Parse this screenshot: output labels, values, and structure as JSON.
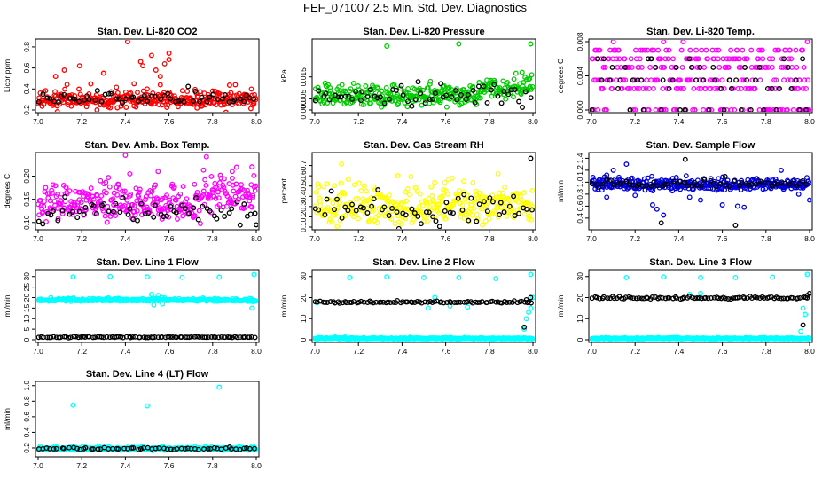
{
  "title": "FEF_071007  2.5 Min. Std. Dev. Diagnostics",
  "colors": {
    "red": "#ff0000",
    "green": "#00cc00",
    "magenta": "#ff00ff",
    "yellow": "#ffff00",
    "blue": "#0000dd",
    "cyan": "#00ffff",
    "black": "#000000"
  },
  "chart_data": [
    {
      "type": "scatter",
      "title": "Stan. Dev. Li-820 CO2",
      "ylabel": "Licor ppm",
      "xlim": [
        7.0,
        8.0
      ],
      "ylim": [
        0.2,
        0.85
      ],
      "xticks": [
        "7.0",
        "7.2",
        "7.4",
        "7.6",
        "7.8",
        "8.0"
      ],
      "yticks": [
        "0.2",
        "0.4",
        "0.6",
        "0.8"
      ],
      "series": [
        {
          "name": "primary",
          "color": "red",
          "base": 0.29,
          "spread": 0.05,
          "n": 340,
          "seed": 11,
          "outliers": [
            [
              7.08,
              0.52
            ],
            [
              7.12,
              0.58
            ],
            [
              7.19,
              0.62
            ],
            [
              7.3,
              0.55
            ],
            [
              7.41,
              0.85
            ],
            [
              7.44,
              0.45
            ],
            [
              7.47,
              0.66
            ],
            [
              7.48,
              0.62
            ],
            [
              7.5,
              0.4
            ],
            [
              7.52,
              0.72
            ],
            [
              7.54,
              0.58
            ],
            [
              7.56,
              0.52
            ],
            [
              7.58,
              0.64
            ],
            [
              7.6,
              0.74
            ],
            [
              7.6,
              0.68
            ],
            [
              7.56,
              0.44
            ],
            [
              7.27,
              0.2
            ],
            [
              7.33,
              0.22
            ]
          ]
        },
        {
          "name": "secondary",
          "color": "black",
          "base": 0.31,
          "spread": 0.04,
          "n": 60,
          "seed": 12,
          "outliers": []
        }
      ]
    },
    {
      "type": "scatter",
      "title": "Stan. Dev. Li-820 Pressure",
      "ylabel": "kPa",
      "xlim": [
        7.0,
        8.0
      ],
      "ylim": [
        0.0,
        0.031
      ],
      "xticks": [
        "7.0",
        "7.2",
        "7.4",
        "7.6",
        "7.8",
        "8.0"
      ],
      "yticks": [
        "0.000",
        "0.005",
        "0.015"
      ],
      "ytick_values": [
        0.0,
        0.005,
        0.015
      ],
      "series": [
        {
          "name": "primary",
          "color": "green",
          "base": 0.006,
          "spread": 0.003,
          "n": 340,
          "seed": 21,
          "step_after": 7.76,
          "step_to": 0.01,
          "outliers": [
            [
              7.33,
              0.029
            ],
            [
              7.66,
              0.03
            ],
            [
              7.99,
              0.03
            ]
          ]
        },
        {
          "name": "secondary",
          "color": "black",
          "base": 0.006,
          "spread": 0.0025,
          "n": 60,
          "seed": 22,
          "outliers": []
        }
      ]
    },
    {
      "type": "scatter",
      "title": "Stan. Dev. Li-820 Temp.",
      "ylabel": "degrees C",
      "xlim": [
        7.0,
        8.0
      ],
      "ylim": [
        0.0,
        0.008
      ],
      "xticks": [
        "7.0",
        "7.2",
        "7.4",
        "7.6",
        "7.8",
        "8.0"
      ],
      "yticks": [
        "0.000",
        "0.004",
        "0.008"
      ],
      "ytick_values": [
        0.0,
        0.004,
        0.008
      ],
      "series": [
        {
          "name": "primary",
          "color": "magenta",
          "levels": [
            0.0,
            0.0025,
            0.0035,
            0.005,
            0.006,
            0.007
          ],
          "n": 330,
          "seed": 31,
          "outliers": [
            [
              7.1,
              0.008
            ],
            [
              7.33,
              0.008
            ],
            [
              7.42,
              0.008
            ],
            [
              7.99,
              0.008
            ]
          ]
        },
        {
          "name": "secondary",
          "color": "black",
          "levels": [
            0.0,
            0.0025,
            0.0035,
            0.005,
            0.006
          ],
          "n": 55,
          "seed": 32,
          "outliers": []
        }
      ]
    },
    {
      "type": "scatter",
      "title": "Stan. Dev. Amb. Box Temp.",
      "ylabel": "degrees C",
      "xlim": [
        7.0,
        8.0
      ],
      "ylim": [
        0.09,
        0.245
      ],
      "xticks": [
        "7.0",
        "7.2",
        "7.4",
        "7.6",
        "7.8",
        "8.0"
      ],
      "yticks": [
        "0.10",
        "0.15",
        "0.20"
      ],
      "ytick_values": [
        0.1,
        0.15,
        0.2
      ],
      "series": [
        {
          "name": "primary",
          "color": "magenta",
          "base": 0.14,
          "spread": 0.025,
          "n": 340,
          "seed": 41,
          "step_after": 7.75,
          "step_to": 0.16,
          "outliers": [
            [
              7.4,
              0.245
            ],
            [
              7.55,
              0.21
            ],
            [
              7.98,
              0.22
            ],
            [
              7.89,
              0.21
            ],
            [
              7.42,
              0.205
            ]
          ]
        },
        {
          "name": "secondary",
          "color": "black",
          "base": 0.12,
          "spread": 0.015,
          "n": 60,
          "seed": 42,
          "outliers": [
            [
              8.0,
              0.095
            ]
          ]
        }
      ]
    },
    {
      "type": "scatter",
      "title": "Stan. Dev. Gas Stream RH",
      "ylabel": "percent",
      "xlim": [
        7.0,
        8.0
      ],
      "ylim": [
        0.1,
        0.8
      ],
      "xticks": [
        "7.0",
        "7.2",
        "7.4",
        "7.6",
        "7.8",
        "8.0"
      ],
      "yticks": [
        "0.1",
        "0.2",
        "0.3",
        "0.4",
        "0.5",
        "0.6",
        "0.7"
      ],
      "ytick_values": [
        0.1,
        0.2,
        0.3,
        0.4,
        0.5,
        0.6,
        0.7
      ],
      "series": [
        {
          "name": "primary",
          "color": "yellow",
          "base": 0.3,
          "spread": 0.13,
          "n": 330,
          "seed": 51,
          "outliers": [
            [
              7.84,
              0.62
            ],
            [
              7.38,
              0.6
            ]
          ]
        },
        {
          "name": "secondary",
          "color": "black",
          "base": 0.27,
          "spread": 0.1,
          "n": 60,
          "seed": 52,
          "outliers": [
            [
              7.99,
              0.77
            ]
          ]
        }
      ]
    },
    {
      "type": "scatter",
      "title": "Stan. Dev. Sample Flow",
      "ylabel": "ml/min",
      "xlim": [
        7.0,
        8.0
      ],
      "ylim": [
        0.25,
        1.45
      ],
      "xticks": [
        "7.0",
        "7.2",
        "7.4",
        "7.6",
        "7.8",
        "8.0"
      ],
      "yticks": [
        "0.4",
        "0.6",
        "0.8",
        "1.0",
        "1.2",
        "1.4"
      ],
      "ytick_values": [
        0.4,
        0.6,
        0.8,
        1.0,
        1.2,
        1.4
      ],
      "series": [
        {
          "name": "primary",
          "color": "blue",
          "base": 0.95,
          "spread": 0.06,
          "n": 360,
          "seed": 61,
          "outliers": [
            [
              7.07,
              1.12
            ],
            [
              7.1,
              1.2
            ],
            [
              7.16,
              1.3
            ],
            [
              7.2,
              0.78
            ],
            [
              7.28,
              0.62
            ],
            [
              7.3,
              0.55
            ],
            [
              7.33,
              0.45
            ],
            [
              7.45,
              0.75
            ],
            [
              7.5,
              0.7
            ],
            [
              7.6,
              0.62
            ],
            [
              7.67,
              0.6
            ],
            [
              7.7,
              0.58
            ],
            [
              7.87,
              1.2
            ],
            [
              7.95,
              0.8
            ],
            [
              8.0,
              0.7
            ],
            [
              7.03,
              0.88
            ],
            [
              7.07,
              0.75
            ]
          ]
        },
        {
          "name": "secondary",
          "color": "black",
          "base": 0.97,
          "spread": 0.05,
          "n": 60,
          "seed": 62,
          "outliers": [
            [
              7.43,
              1.38
            ],
            [
              7.32,
              0.32
            ],
            [
              7.66,
              0.28
            ]
          ]
        }
      ]
    },
    {
      "type": "scatter",
      "title": "Stan. Dev. Line 1 Flow",
      "ylabel": "ml/min",
      "xlim": [
        7.0,
        8.0
      ],
      "ylim": [
        0.0,
        32.0
      ],
      "xticks": [
        "7.0",
        "7.2",
        "7.4",
        "7.6",
        "7.8",
        "8.0"
      ],
      "yticks": [
        "0",
        "5",
        "10",
        "15",
        "20",
        "25",
        "30"
      ],
      "ytick_values": [
        0,
        5,
        10,
        15,
        20,
        25,
        30
      ],
      "series": [
        {
          "name": "primary",
          "color": "cyan",
          "base": 18.8,
          "spread": 0.4,
          "n": 340,
          "seed": 71,
          "outliers": [
            [
              7.16,
              29.8
            ],
            [
              7.33,
              30.0
            ],
            [
              7.5,
              29.8
            ],
            [
              7.66,
              29.6
            ],
            [
              7.83,
              29.7
            ],
            [
              7.99,
              31.0
            ],
            [
              7.52,
              21.5
            ],
            [
              7.53,
              16.5
            ],
            [
              7.98,
              15.0
            ],
            [
              7.55,
              21.0
            ],
            [
              7.57,
              17.0
            ]
          ]
        },
        {
          "name": "secondary",
          "color": "black",
          "base": 1.2,
          "spread": 0.15,
          "n": 90,
          "seed": 72,
          "outliers": []
        }
      ]
    },
    {
      "type": "scatter",
      "title": "Stan. Dev. Line 2 Flow",
      "ylabel": "ml/min",
      "xlim": [
        7.0,
        8.0
      ],
      "ylim": [
        0.0,
        32.0
      ],
      "xticks": [
        "7.0",
        "7.2",
        "7.4",
        "7.6",
        "7.8",
        "8.0"
      ],
      "yticks": [
        "0",
        "10",
        "20",
        "30"
      ],
      "ytick_values": [
        0,
        10,
        20,
        30
      ],
      "series": [
        {
          "name": "primary",
          "color": "cyan",
          "base": 0.6,
          "spread": 0.2,
          "n": 340,
          "seed": 81,
          "outliers": [
            [
              7.16,
              29.5
            ],
            [
              7.33,
              29.8
            ],
            [
              7.5,
              29.5
            ],
            [
              7.66,
              29.5
            ],
            [
              7.83,
              29.0
            ],
            [
              7.99,
              31.0
            ],
            [
              7.01,
              17.5
            ],
            [
              7.52,
              15.0
            ],
            [
              7.55,
              20.0
            ],
            [
              7.97,
              10.0
            ],
            [
              7.98,
              13.0
            ],
            [
              7.99,
              15.0
            ],
            [
              8.0,
              20.0
            ],
            [
              7.96,
              5.0
            ],
            [
              7.62,
              16.0
            ],
            [
              7.7,
              15.5
            ]
          ]
        },
        {
          "name": "secondary",
          "color": "black",
          "base": 17.8,
          "spread": 0.3,
          "n": 90,
          "seed": 82,
          "outliers": [
            [
              7.97,
              19.0
            ],
            [
              7.99,
              20.0
            ],
            [
              7.96,
              6.0
            ]
          ]
        }
      ]
    },
    {
      "type": "scatter",
      "title": "Stan. Dev. Line 3 Flow",
      "ylabel": "ml/min",
      "xlim": [
        7.0,
        8.0
      ],
      "ylim": [
        0.0,
        32.0
      ],
      "xticks": [
        "7.0",
        "7.2",
        "7.4",
        "7.6",
        "7.8",
        "8.0"
      ],
      "yticks": [
        "0",
        "10",
        "20",
        "30"
      ],
      "ytick_values": [
        0,
        10,
        20,
        30
      ],
      "series": [
        {
          "name": "primary",
          "color": "cyan",
          "base": 0.6,
          "spread": 0.2,
          "n": 340,
          "seed": 91,
          "outliers": [
            [
              7.16,
              29.5
            ],
            [
              7.33,
              29.8
            ],
            [
              7.5,
              29.5
            ],
            [
              7.66,
              29.5
            ],
            [
              7.83,
              29.7
            ],
            [
              7.99,
              31.0
            ],
            [
              7.45,
              21.5
            ],
            [
              7.5,
              22.0
            ],
            [
              7.97,
              15.0
            ],
            [
              7.98,
              12.0
            ],
            [
              7.96,
              4.0
            ]
          ]
        },
        {
          "name": "secondary",
          "color": "black",
          "base": 19.8,
          "spread": 0.4,
          "n": 90,
          "seed": 92,
          "outliers": [
            [
              7.97,
              7.0
            ],
            [
              7.99,
              21.0
            ],
            [
              8.0,
              22.0
            ]
          ]
        }
      ]
    },
    {
      "type": "scatter",
      "title": "Stan. Dev. Line 4 (LT) Flow",
      "ylabel": "ml/min",
      "xlim": [
        7.0,
        8.0
      ],
      "ylim": [
        0.12,
        1.02
      ],
      "xticks": [
        "7.0",
        "7.2",
        "7.4",
        "7.6",
        "7.8",
        "8.0"
      ],
      "yticks": [
        "0.2",
        "0.4",
        "0.6",
        "0.8",
        "1.0"
      ],
      "ytick_values": [
        0.2,
        0.4,
        0.6,
        0.8,
        1.0
      ],
      "series": [
        {
          "name": "primary",
          "color": "cyan",
          "base": 0.19,
          "spread": 0.012,
          "n": 330,
          "seed": 101,
          "outliers": [
            [
              7.16,
              0.75
            ],
            [
              7.5,
              0.74
            ],
            [
              7.83,
              0.98
            ]
          ]
        },
        {
          "name": "secondary",
          "color": "black",
          "base": 0.19,
          "spread": 0.008,
          "n": 60,
          "seed": 102,
          "outliers": []
        }
      ]
    }
  ]
}
